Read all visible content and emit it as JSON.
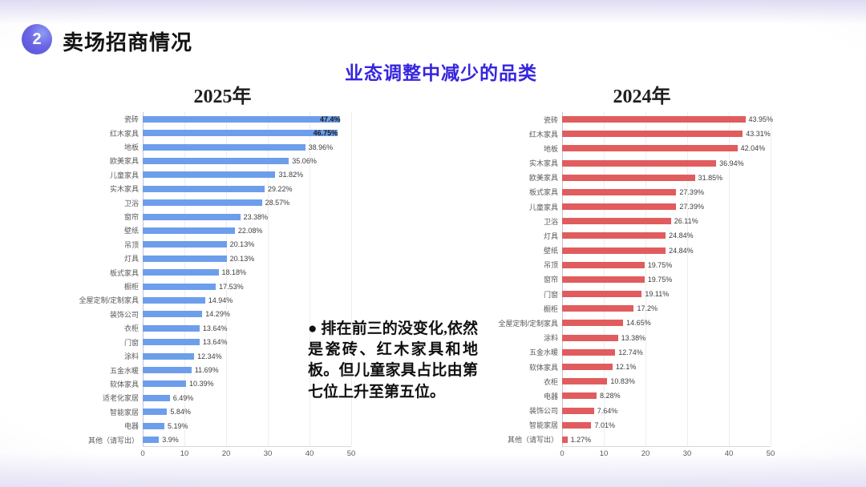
{
  "slide": {
    "badge_number": "2",
    "header_title": "卖场招商情况",
    "main_title": "业态调整中减少的品类",
    "annotation": "●  排在前三的没变化,依然是瓷砖、红木家具和地板。但儿童家具占比由第七位上升至第五位。",
    "colors": {
      "accent_title": "#3626DD",
      "badge": "#5B55DB",
      "bar_2025": "#6D9EEB",
      "bar_2024": "#E15C5E"
    }
  },
  "chart_data": [
    {
      "type": "bar",
      "orientation": "horizontal",
      "title": "2025年",
      "bar_color": "#6D9EEB",
      "xlim": [
        0,
        50
      ],
      "x_ticks": [
        0,
        10,
        20,
        30,
        40,
        50
      ],
      "grid": true,
      "categories": [
        "瓷砖",
        "红木家具",
        "地板",
        "欧美家具",
        "儿童家具",
        "实木家具",
        "卫浴",
        "窗帘",
        "壁纸",
        "吊顶",
        "灯具",
        "板式家具",
        "橱柜",
        "全屋定制/定制家具",
        "装饰公司",
        "衣柜",
        "门窗",
        "涂料",
        "五金水暖",
        "软体家具",
        "适老化家居",
        "智能家居",
        "电器",
        "其他（请写出）"
      ],
      "values": [
        47.4,
        46.75,
        38.96,
        35.06,
        31.82,
        29.22,
        28.57,
        23.38,
        22.08,
        20.13,
        20.13,
        18.18,
        17.53,
        14.94,
        14.29,
        13.64,
        13.64,
        12.34,
        11.69,
        10.39,
        6.49,
        5.84,
        5.19,
        3.9
      ],
      "value_labels": [
        "47.4%",
        "46.75%",
        "38.96%",
        "35.06%",
        "31.82%",
        "29.22%",
        "28.57%",
        "23.38%",
        "22.08%",
        "20.13%",
        "20.13%",
        "18.18%",
        "17.53%",
        "14.94%",
        "14.29%",
        "13.64%",
        "13.64%",
        "12.34%",
        "11.69%",
        "10.39%",
        "6.49%",
        "5.84%",
        "5.19%",
        "3.9%"
      ]
    },
    {
      "type": "bar",
      "orientation": "horizontal",
      "title": "2024年",
      "bar_color": "#E15C5E",
      "xlim": [
        0,
        50
      ],
      "x_ticks": [
        0,
        10,
        20,
        30,
        40,
        50
      ],
      "grid": true,
      "categories": [
        "瓷砖",
        "红木家具",
        "地板",
        "实木家具",
        "欧美家具",
        "板式家具",
        "儿童家具",
        "卫浴",
        "灯具",
        "壁纸",
        "吊顶",
        "窗帘",
        "门窗",
        "橱柜",
        "全屋定制/定制家具",
        "涂料",
        "五金水暖",
        "软体家具",
        "衣柜",
        "电器",
        "装饰公司",
        "智能家居",
        "其他（请写出）"
      ],
      "values": [
        43.95,
        43.31,
        42.04,
        36.94,
        31.85,
        27.39,
        27.39,
        26.11,
        24.84,
        24.84,
        19.75,
        19.75,
        19.11,
        17.2,
        14.65,
        13.38,
        12.74,
        12.1,
        10.83,
        8.28,
        7.64,
        7.01,
        1.27
      ],
      "value_labels": [
        "43.95%",
        "43.31%",
        "42.04%",
        "36.94%",
        "31.85%",
        "27.39%",
        "27.39%",
        "26.11%",
        "24.84%",
        "24.84%",
        "19.75%",
        "19.75%",
        "19.11%",
        "17.2%",
        "14.65%",
        "13.38%",
        "12.74%",
        "12.1%",
        "10.83%",
        "8.28%",
        "7.64%",
        "7.01%",
        "1.27%"
      ]
    }
  ]
}
